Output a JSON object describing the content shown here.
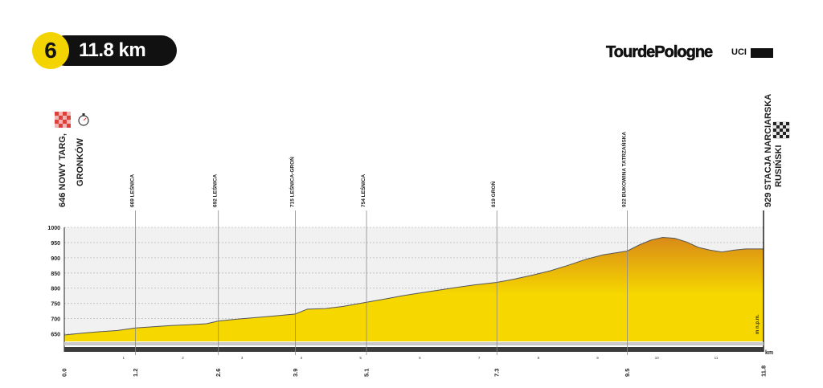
{
  "stage": {
    "number": "6",
    "distance": "11.8 km"
  },
  "branding": {
    "race_logo": "TourdePologne",
    "uci": "UCI",
    "uci_tag": "WORLD TOUR"
  },
  "chart_data": {
    "type": "area",
    "title": "",
    "x_unit": "km",
    "y_unit": "m n.p.m.",
    "xlim": [
      0,
      11.8
    ],
    "ylim": [
      625,
      1000
    ],
    "y_ticks": [
      650,
      700,
      750,
      800,
      850,
      900,
      950,
      1000
    ],
    "x_minor_ticks": [
      "1",
      "2",
      "3",
      "4",
      "5",
      "6",
      "7",
      "8",
      "9",
      "10",
      "11"
    ],
    "grid": true,
    "fill_colors": {
      "low": "#f6d800",
      "high": "#d98a18"
    },
    "profile": {
      "x": [
        0,
        0.3,
        0.6,
        0.9,
        1.2,
        1.5,
        1.8,
        2.1,
        2.4,
        2.6,
        2.9,
        3.2,
        3.5,
        3.9,
        4.1,
        4.4,
        4.7,
        5.1,
        5.4,
        5.7,
        6.0,
        6.3,
        6.6,
        6.9,
        7.3,
        7.6,
        7.9,
        8.2,
        8.5,
        8.8,
        9.1,
        9.5,
        9.7,
        9.9,
        10.1,
        10.3,
        10.5,
        10.7,
        10.9,
        11.1,
        11.3,
        11.5,
        11.8
      ],
      "y": [
        646,
        652,
        657,
        661,
        669,
        673,
        677,
        680,
        683,
        692,
        698,
        703,
        708,
        715,
        731,
        733,
        740,
        754,
        764,
        775,
        784,
        793,
        802,
        810,
        819,
        830,
        843,
        857,
        875,
        895,
        910,
        922,
        942,
        958,
        967,
        964,
        952,
        934,
        925,
        919,
        925,
        929,
        929
      ]
    },
    "waypoints": [
      {
        "km": "0.0",
        "alt": "646",
        "name": "NOWY TARG,",
        "name2": "GRONKÓW",
        "type": "start"
      },
      {
        "km": "1.2",
        "alt": "669",
        "name": "LEŚNICA",
        "type": "point"
      },
      {
        "km": "2.6",
        "alt": "692",
        "name": "LEŚNICA",
        "type": "point"
      },
      {
        "km": "3.9",
        "alt": "715",
        "name": "LEŚNICA-GROŃ",
        "type": "point"
      },
      {
        "km": "5.1",
        "alt": "754",
        "name": "LEŚNICA",
        "type": "point"
      },
      {
        "km": "7.3",
        "alt": "819",
        "name": "GROŃ",
        "type": "point"
      },
      {
        "km": "9.5",
        "alt": "922",
        "name": "BUKOWINA TATRZAŃSKA",
        "type": "point"
      },
      {
        "km": "11.8",
        "alt": "929",
        "name": "STACJA NARCIARSKA",
        "name2": "RUSIŃSKI",
        "type": "finish"
      }
    ],
    "start_icons": [
      "start-flag-icon",
      "stopwatch-icon"
    ],
    "finish_icon": "finish-flag-icon"
  }
}
